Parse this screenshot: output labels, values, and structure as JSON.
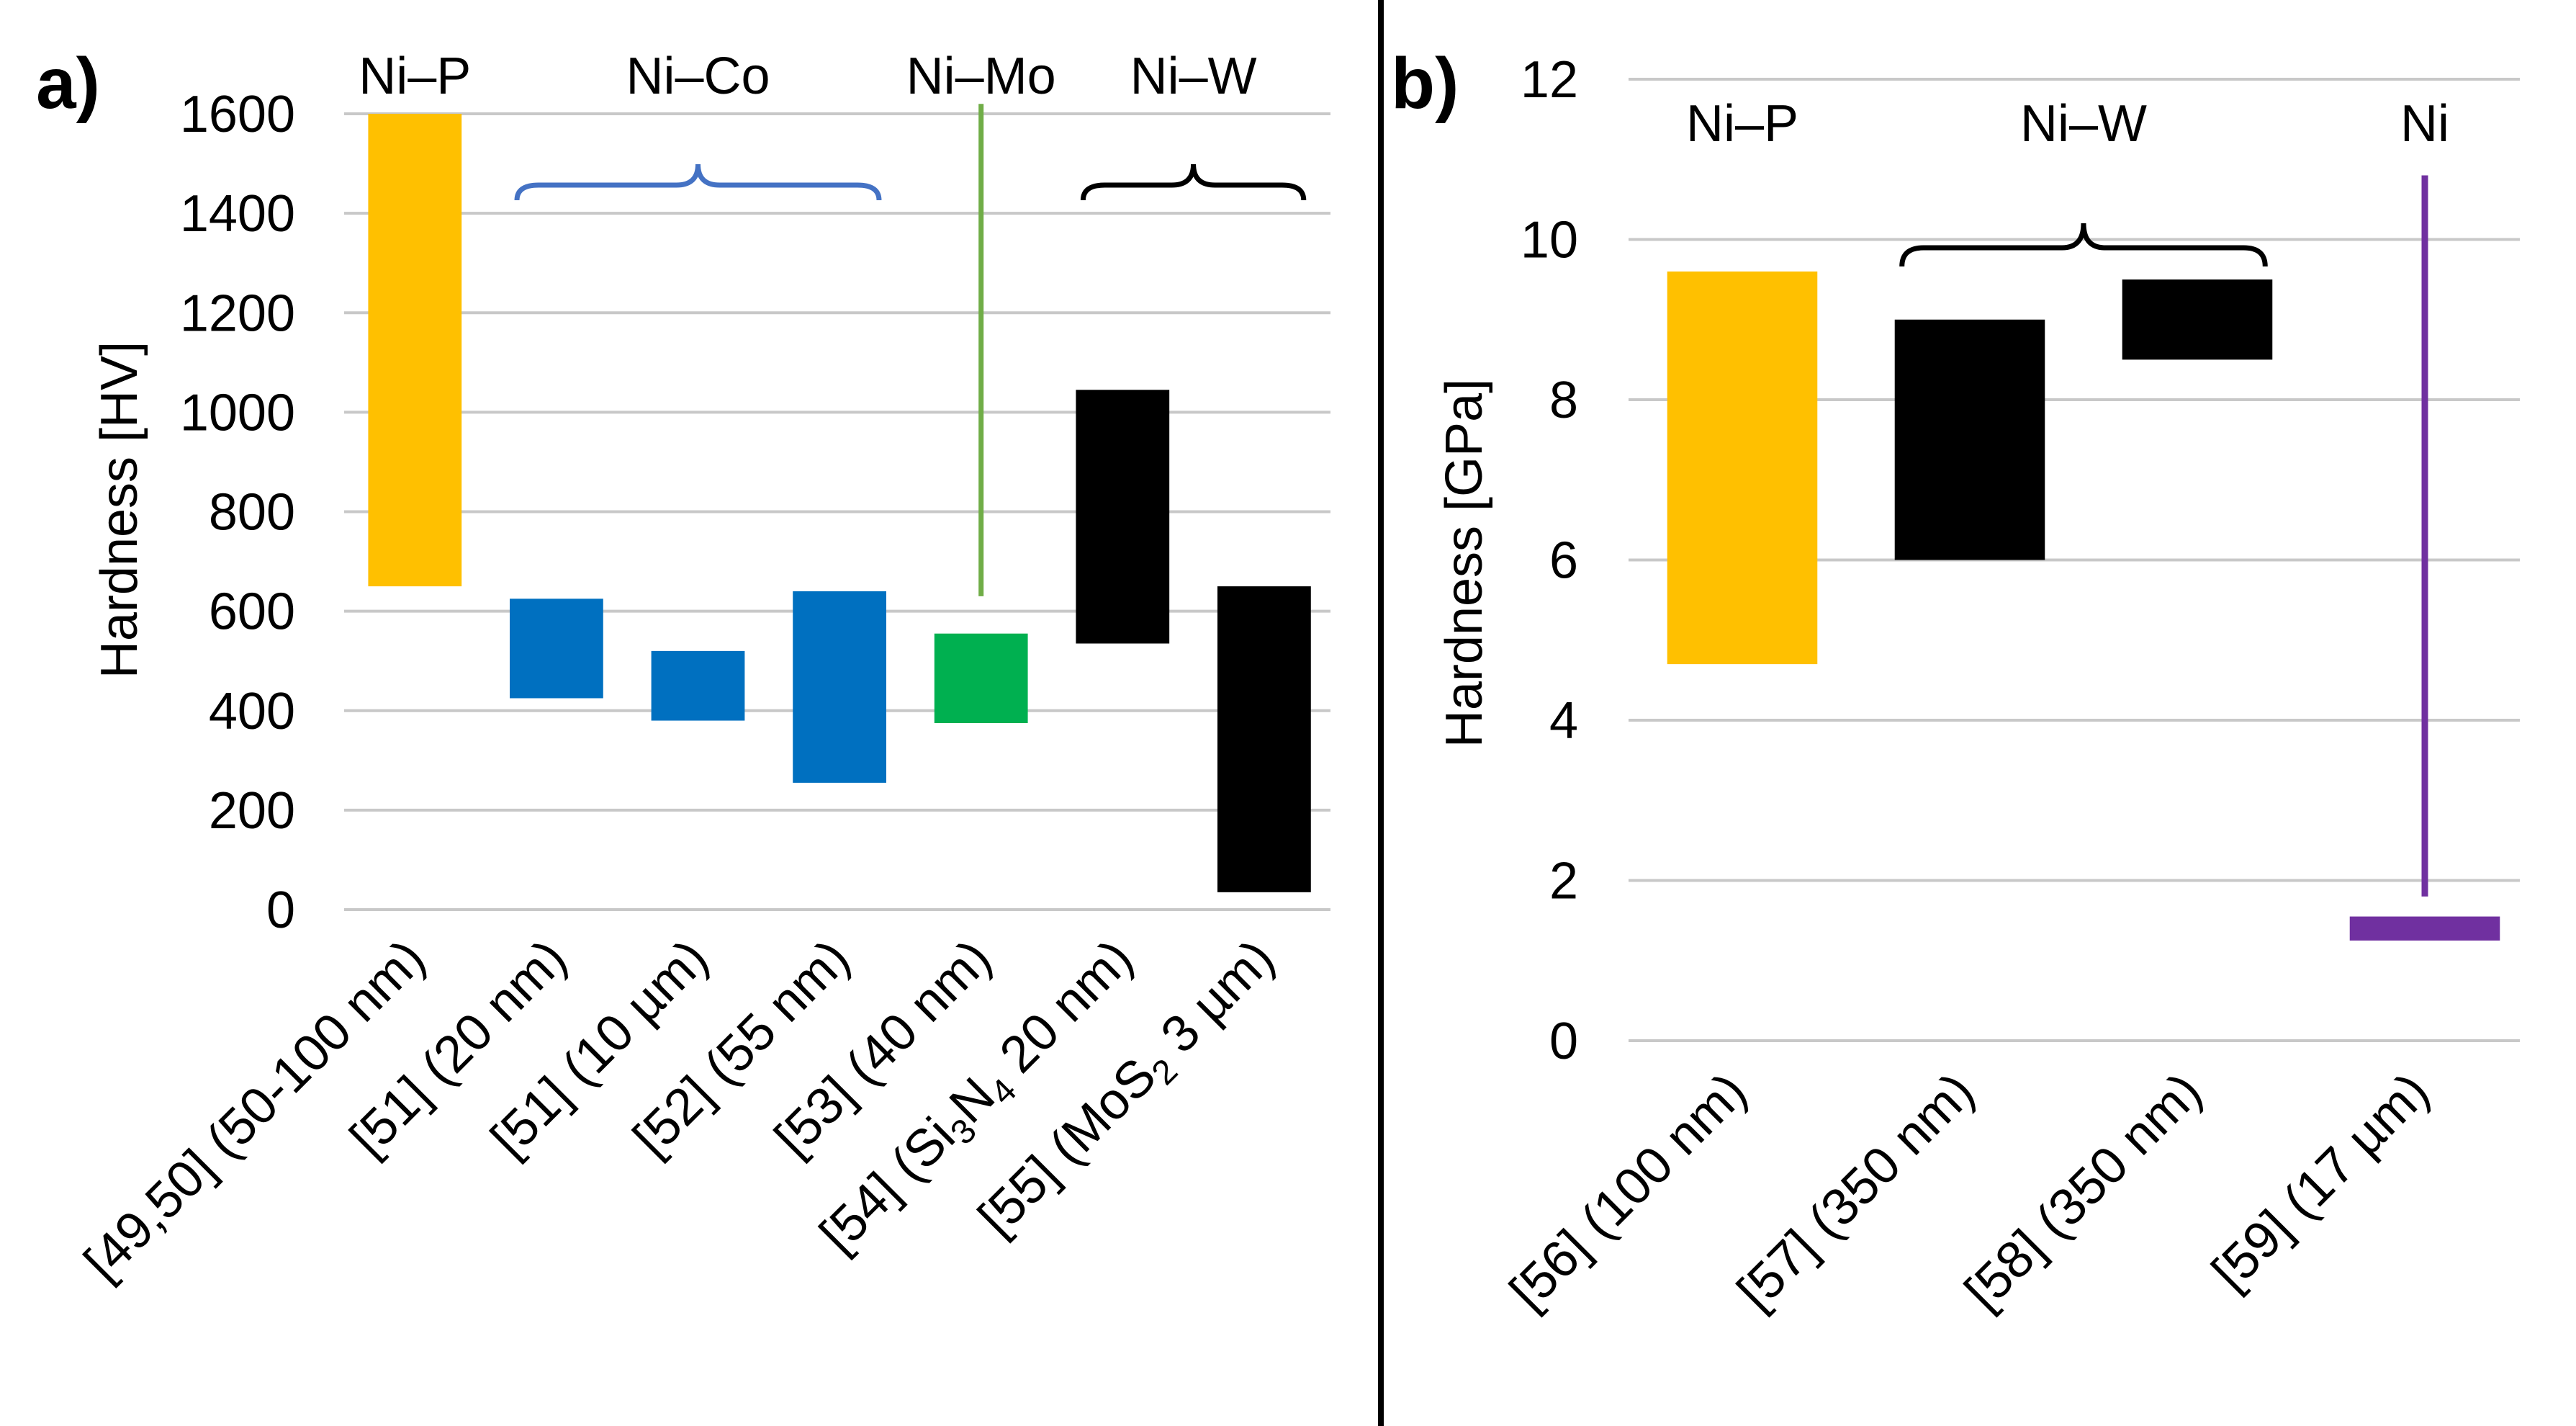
{
  "colors": {
    "ni_p": "#FFC000",
    "ni_co": "#0070C0",
    "ni_co_brace": "#4472C4",
    "ni_mo": "#00B050",
    "ni_mo_line": "#70AD47",
    "ni_w": "#000000",
    "ni": "#7030A0",
    "grid": "#C8C8C8"
  },
  "chart_data": [
    {
      "type": "bar",
      "subtype": "floating-range",
      "panel_label": "a)",
      "ylabel": "Hardness [HV]",
      "ylim": [
        0,
        1600
      ],
      "yticks": [
        "0",
        "200",
        "400",
        "600",
        "800",
        "1000",
        "1200",
        "1400",
        "1600"
      ],
      "grid": true,
      "categories": [
        {
          "pre": "[49,50] (50-100 nm)"
        },
        {
          "pre": "[51] (20 nm)"
        },
        {
          "pre": "[51] (10 µm)"
        },
        {
          "pre": "[52] (55 nm)"
        },
        {
          "pre": "[53] (40 nm)"
        },
        {
          "pre": "[54] (Si",
          "sub": "3",
          "mid": "N",
          "sub2": "4",
          "post": " 20 nm)"
        },
        {
          "pre": "[55] (MoS",
          "sub": "2",
          "post": " 3 µm)"
        }
      ],
      "ranges": [
        {
          "low": 650,
          "high": 1600,
          "color_key": "ni_p"
        },
        {
          "low": 425,
          "high": 625,
          "color_key": "ni_co"
        },
        {
          "low": 380,
          "high": 520,
          "color_key": "ni_co"
        },
        {
          "low": 255,
          "high": 640,
          "color_key": "ni_co"
        },
        {
          "low": 375,
          "high": 555,
          "color_key": "ni_mo"
        },
        {
          "low": 535,
          "high": 1045,
          "color_key": "ni_w"
        },
        {
          "low": 35,
          "high": 650,
          "color_key": "ni_w"
        }
      ],
      "lines": [
        {
          "category_index": 4,
          "low": 630,
          "high": 1620,
          "color_key": "ni_mo_line"
        }
      ],
      "groups": [
        {
          "label": "Ni–P",
          "first": 0,
          "last": 0,
          "brace": false
        },
        {
          "label": "Ni–Co",
          "first": 1,
          "last": 3,
          "brace": true,
          "color_key": "ni_co_brace"
        },
        {
          "label": "Ni–Mo",
          "first": 4,
          "last": 4,
          "brace": false
        },
        {
          "label": "Ni–W",
          "first": 5,
          "last": 6,
          "brace": true,
          "color_key": "ni_w"
        }
      ]
    },
    {
      "type": "bar",
      "subtype": "floating-range",
      "panel_label": "b)",
      "ylabel": "Hardness [GPa]",
      "ylim": [
        0,
        12
      ],
      "yticks": [
        "0",
        "2",
        "4",
        "6",
        "8",
        "10",
        "12"
      ],
      "grid": true,
      "categories": [
        {
          "pre": "[56] (100 nm)"
        },
        {
          "pre": "[57] (350 nm)"
        },
        {
          "pre": "[58] (350 nm)"
        },
        {
          "pre": "[59] (17 µm)"
        }
      ],
      "ranges": [
        {
          "low": 4.7,
          "high": 9.6,
          "color_key": "ni_p"
        },
        {
          "low": 6.0,
          "high": 9.0,
          "color_key": "ni_w"
        },
        {
          "low": 8.5,
          "high": 9.5,
          "color_key": "ni_w"
        },
        {
          "low": 1.25,
          "high": 1.55,
          "color_key": "ni"
        }
      ],
      "lines": [
        {
          "category_index": 3,
          "low": 1.8,
          "high": 10.8,
          "color_key": "ni"
        }
      ],
      "groups": [
        {
          "label": "Ni–P",
          "first": 0,
          "last": 0,
          "brace": false
        },
        {
          "label": "Ni–W",
          "first": 1,
          "last": 2,
          "brace": true,
          "color_key": "ni_w"
        },
        {
          "label": "Ni",
          "first": 3,
          "last": 3,
          "brace": false
        }
      ]
    }
  ]
}
